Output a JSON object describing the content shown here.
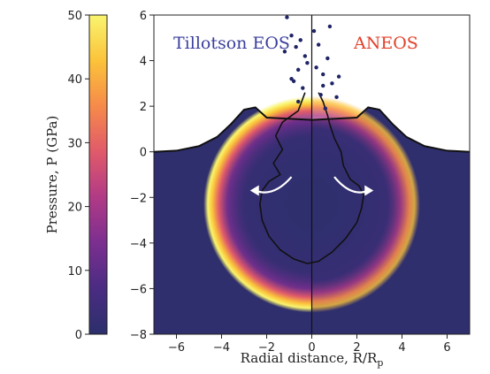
{
  "chart_data": {
    "type": "heatmap",
    "title": "",
    "xlabel": "Radial distance, R/R",
    "xlabel_sub": "p",
    "ylabel": "",
    "xlim": [
      -7,
      7
    ],
    "ylim": [
      -8,
      6
    ],
    "xticks": [
      "−6",
      "−4",
      "−2",
      "0",
      "2",
      "4",
      "6"
    ],
    "yticks": [
      "−8",
      "−6",
      "−4",
      "−2",
      "0",
      "2",
      "4",
      "6"
    ],
    "xtick_values": [
      -6,
      -4,
      -2,
      0,
      2,
      4,
      6
    ],
    "ytick_values": [
      -8,
      -6,
      -4,
      -2,
      0,
      2,
      4,
      6
    ],
    "left_label": "Tillotson EOS",
    "right_label": "ANEOS",
    "left_label_color": "#3b3f9e",
    "right_label_color": "#e2412a",
    "background_color": "#2f2f6e",
    "colorbar": {
      "label": "Pressure, P (GPa)",
      "range": [
        0,
        50
      ],
      "ticks": [
        "0",
        "10",
        "20",
        "30",
        "40",
        "50"
      ],
      "tick_values": [
        0,
        10,
        20,
        30,
        40,
        50
      ],
      "colormap": [
        "#2c2f6b",
        "#4a2c82",
        "#7b2f8f",
        "#b13a86",
        "#e05a6a",
        "#f68a4a",
        "#fbc33a",
        "#f9f46f"
      ]
    },
    "surface_profile": {
      "x": [
        -7,
        -6.0,
        -5.0,
        -4.2,
        -3.6,
        -3.0,
        -2.5,
        -2.0,
        0,
        2.0,
        2.5,
        3.0,
        3.6,
        4.2,
        5.0,
        6.0,
        7
      ],
      "y": [
        0,
        0.05,
        0.25,
        0.65,
        1.2,
        1.85,
        1.95,
        1.5,
        1.4,
        1.5,
        1.95,
        1.85,
        1.2,
        0.65,
        0.25,
        0.05,
        0
      ]
    },
    "shock_front": {
      "center_depth": -2.3,
      "inner_radius": 4.3,
      "outer_radius": 4.8,
      "peak_pressure": 50
    },
    "crater_contour": {
      "x": [
        -0.3,
        -0.6,
        -1.3,
        -1.6,
        -1.3,
        -1.7,
        -1.4,
        -1.9,
        -2.2,
        -2.3,
        -2.2,
        -1.9,
        -1.4,
        -0.8,
        -0.2,
        0.3,
        0.9,
        1.5,
        2.0,
        2.2,
        2.3,
        2.1,
        1.7,
        1.4,
        1.3,
        1.0,
        0.8,
        0.7,
        0.5,
        0.3
      ],
      "y": [
        2.6,
        1.8,
        1.3,
        0.7,
        0.1,
        -0.5,
        -1.0,
        -1.3,
        -1.7,
        -2.3,
        -3.0,
        -3.7,
        -4.3,
        -4.7,
        -4.9,
        -4.8,
        -4.4,
        -3.8,
        -3.1,
        -2.5,
        -1.9,
        -1.5,
        -1.2,
        -0.6,
        0.0,
        0.6,
        1.2,
        1.6,
        2.2,
        2.6
      ]
    },
    "flow_arrows": [
      {
        "side": "left",
        "from": [
          -0.9,
          -1.1
        ],
        "to": [
          -2.5,
          -1.7
        ]
      },
      {
        "side": "right",
        "from": [
          1.0,
          -1.1
        ],
        "to": [
          2.5,
          -1.7
        ]
      }
    ],
    "ejecta_particles": {
      "x": [
        -1.1,
        -0.9,
        -0.7,
        -0.5,
        -0.3,
        -0.6,
        -0.9,
        -0.2,
        0.1,
        0.3,
        0.5,
        0.8,
        -1.2,
        0.5,
        0.2,
        -0.4,
        0.9,
        1.1,
        0.6,
        0.4,
        -0.8,
        1.2,
        -0.6,
        0.7
      ],
      "y": [
        5.9,
        5.1,
        4.6,
        4.9,
        4.2,
        3.6,
        3.2,
        3.9,
        5.3,
        4.7,
        3.4,
        5.5,
        4.4,
        2.9,
        3.7,
        2.8,
        3.0,
        2.4,
        1.9,
        2.5,
        3.1,
        3.3,
        2.2,
        4.1
      ]
    }
  }
}
